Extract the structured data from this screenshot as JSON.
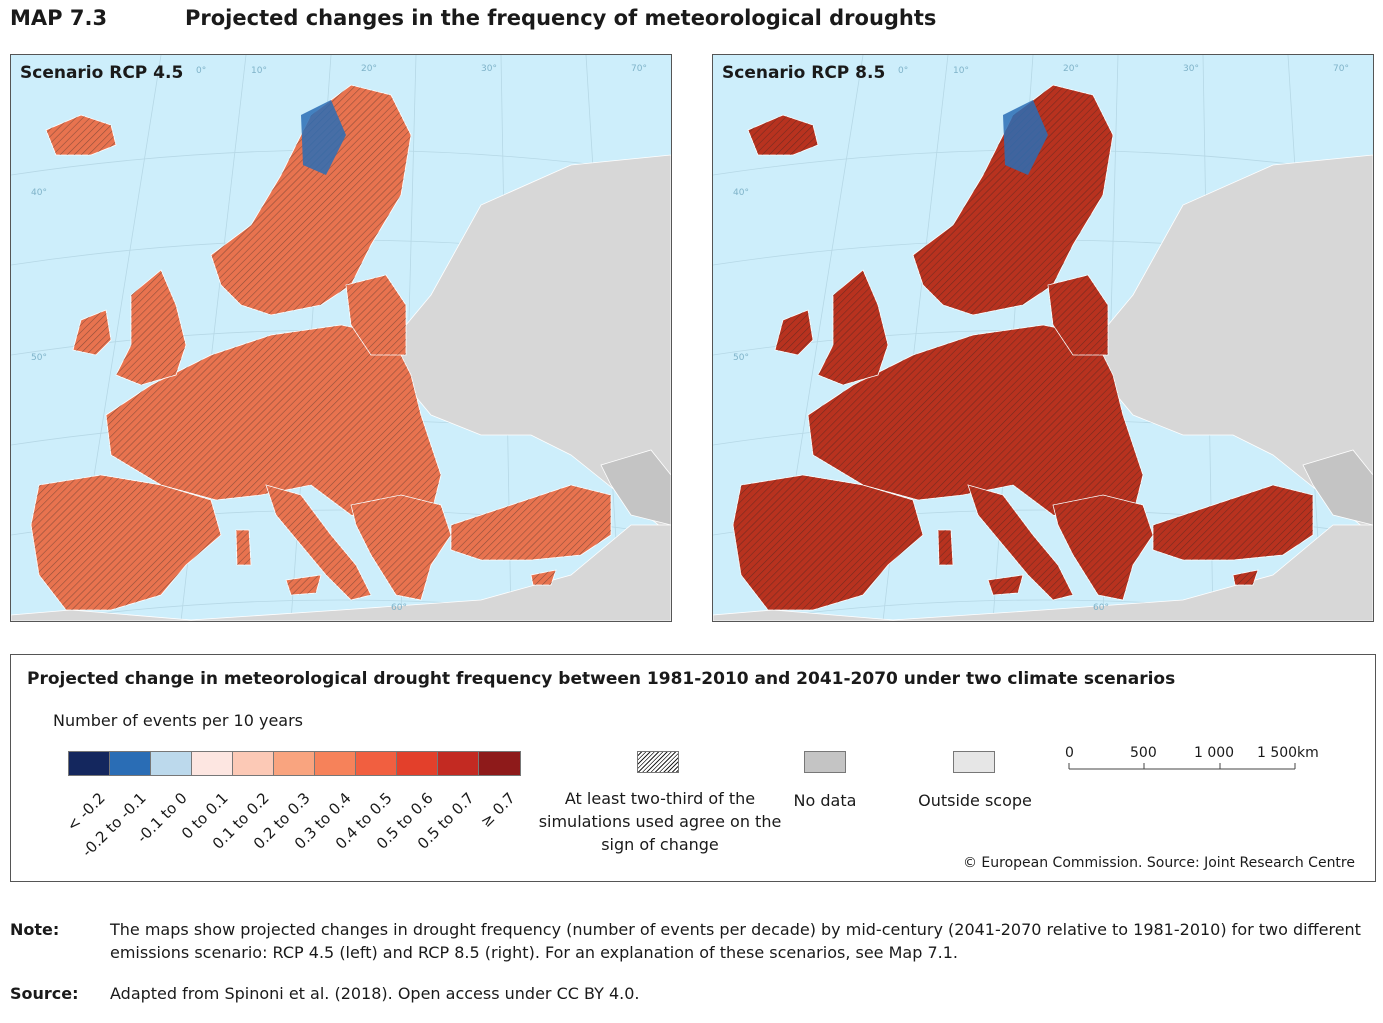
{
  "header": {
    "map_label": "MAP 7.3",
    "title": "Projected changes in the frequency of meteorological droughts"
  },
  "panels": [
    {
      "label": "Scenario RCP 4.5",
      "shade": "#e8734f"
    },
    {
      "label": "Scenario RCP 8.5",
      "shade": "#b8321f"
    }
  ],
  "graticule": [
    "0°",
    "10°",
    "20°",
    "30°",
    "40°",
    "50°",
    "60°",
    "70°"
  ],
  "legend": {
    "title": "Projected change in meteorological drought frequency between 1981-2010 and 2041-2070 under two climate scenarios",
    "subtitle": "Number of events per 10 years",
    "classes": [
      {
        "label": "< -0.2",
        "color": "#14275e"
      },
      {
        "label": "-0.2 to -0.1",
        "color": "#2a6db5"
      },
      {
        "label": "-0.1 to 0",
        "color": "#bcd9ec"
      },
      {
        "label": "0 to 0.1",
        "color": "#fde6e1"
      },
      {
        "label": "0.1 to 0.2",
        "color": "#fcc9b6"
      },
      {
        "label": "0.2 to 0.3",
        "color": "#f9a47f"
      },
      {
        "label": "0.3 to 0.4",
        "color": "#f6825a"
      },
      {
        "label": "0.4 to 0.5",
        "color": "#f15f40"
      },
      {
        "label": "0.5 to 0.6",
        "color": "#e3402b"
      },
      {
        "label": "0.5 to 0.7",
        "color": "#c32a22"
      },
      {
        "label": "≥ 0.7",
        "color": "#8e1a1a"
      }
    ],
    "agreement_label": "At least two-third of the simulations used agree on the sign of change",
    "no_data_label": "No data",
    "no_data_color": "#c4c4c4",
    "outside_scope_label": "Outside scope",
    "outside_scope_color": "#e6e6e6",
    "scale": {
      "ticks": [
        "0",
        "500",
        "1 000",
        "1 500"
      ],
      "unit": "km"
    },
    "copyright": "© European Commission. Source: Joint Research Centre"
  },
  "note": {
    "label": "Note:",
    "text": "The maps show projected changes in drought frequency (number of events per decade) by mid-century (2041-2070 relative to 1981-2010) for two different emissions scenario: RCP 4.5 (left) and RCP 8.5 (right). For an explanation of these scenarios, see Map 7.1."
  },
  "source": {
    "label": "Source:",
    "text": "Adapted from Spinoni et al. (2018). Open access under CC BY 4.0."
  }
}
